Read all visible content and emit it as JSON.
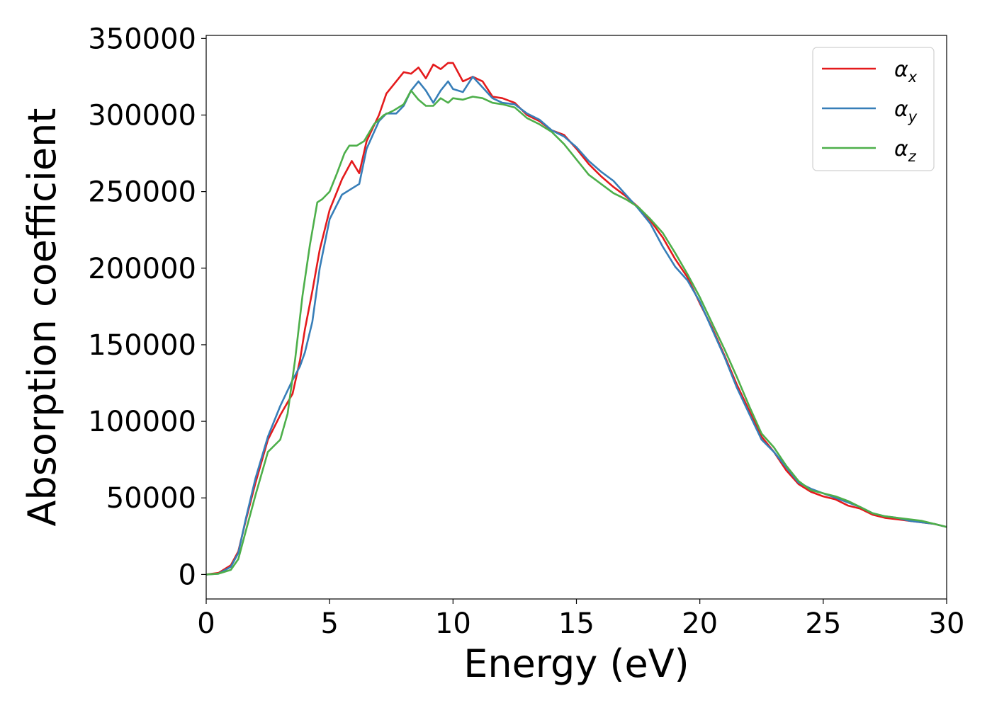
{
  "chart_data": {
    "type": "line",
    "title": "",
    "xlabel": "Energy (eV)",
    "ylabel": "Absorption coefficient",
    "xlim": [
      0,
      30
    ],
    "ylim": [
      -16000,
      352000
    ],
    "xticks": [
      0,
      5,
      10,
      15,
      20,
      25,
      30
    ],
    "yticks": [
      0,
      50000,
      100000,
      150000,
      200000,
      250000,
      300000,
      350000
    ],
    "grid": false,
    "legend_position": "top-right",
    "series": [
      {
        "name": "α",
        "subscript": "x",
        "color": "#e41a1c",
        "x": [
          0,
          0.5,
          1.0,
          1.3,
          1.6,
          2.0,
          2.5,
          3.0,
          3.5,
          3.8,
          4.0,
          4.3,
          4.6,
          5.0,
          5.5,
          5.9,
          6.2,
          6.5,
          7.0,
          7.3,
          7.7,
          8.0,
          8.3,
          8.6,
          8.9,
          9.2,
          9.5,
          9.8,
          10.0,
          10.4,
          10.8,
          11.2,
          11.6,
          12.0,
          12.5,
          13.0,
          13.5,
          14.0,
          14.5,
          15.0,
          15.5,
          16.0,
          16.5,
          17.0,
          17.5,
          18.0,
          18.5,
          19.0,
          19.5,
          20.0,
          20.5,
          21.0,
          21.5,
          22.0,
          22.5,
          23.0,
          23.5,
          24.0,
          24.5,
          25.0,
          25.5,
          26.0,
          26.5,
          27.0,
          27.5,
          28.0,
          28.5,
          29.0,
          29.5,
          30.0
        ],
        "y": [
          0,
          1000,
          6000,
          15000,
          35000,
          60000,
          88000,
          104000,
          118000,
          140000,
          160000,
          185000,
          212000,
          238000,
          258000,
          270000,
          262000,
          283000,
          300000,
          314000,
          322000,
          328000,
          327000,
          331000,
          324000,
          333000,
          330000,
          334000,
          334000,
          322000,
          325000,
          322000,
          312000,
          311000,
          308000,
          300000,
          296000,
          290000,
          287000,
          278000,
          268000,
          260000,
          253000,
          247000,
          240000,
          231000,
          220000,
          206000,
          194000,
          177000,
          161000,
          143000,
          124000,
          107000,
          90000,
          80000,
          68000,
          59000,
          54000,
          51000,
          49000,
          45000,
          43000,
          39000,
          37000,
          36000,
          35000,
          34000,
          33000,
          31000
        ]
      },
      {
        "name": "α",
        "subscript": "y",
        "color": "#377eb8",
        "x": [
          0,
          0.5,
          1.0,
          1.3,
          1.6,
          2.0,
          2.5,
          3.0,
          3.5,
          3.8,
          4.0,
          4.3,
          4.6,
          5.0,
          5.5,
          5.9,
          6.2,
          6.5,
          7.0,
          7.3,
          7.7,
          8.0,
          8.3,
          8.6,
          8.9,
          9.2,
          9.5,
          9.8,
          10.0,
          10.4,
          10.8,
          11.2,
          11.6,
          12.0,
          12.5,
          13.0,
          13.5,
          14.0,
          14.5,
          15.0,
          15.5,
          16.0,
          16.5,
          17.0,
          17.5,
          18.0,
          18.5,
          19.0,
          19.5,
          20.0,
          20.5,
          21.0,
          21.5,
          22.0,
          22.5,
          23.0,
          23.5,
          24.0,
          24.5,
          25.0,
          25.5,
          26.0,
          26.5,
          27.0,
          27.5,
          28.0,
          28.5,
          29.0,
          29.5,
          30.0
        ],
        "y": [
          0,
          500,
          5000,
          14000,
          36000,
          63000,
          90000,
          110000,
          127000,
          136000,
          145000,
          165000,
          200000,
          232000,
          248000,
          252000,
          255000,
          278000,
          296000,
          301000,
          301000,
          306000,
          316000,
          322000,
          316000,
          308000,
          316000,
          322000,
          317000,
          315000,
          325000,
          318000,
          311000,
          308000,
          307000,
          301000,
          297000,
          290000,
          286000,
          279000,
          270000,
          263000,
          257000,
          248000,
          239000,
          229000,
          214000,
          201000,
          192000,
          178000,
          160000,
          142000,
          122000,
          105000,
          88000,
          80000,
          70000,
          60000,
          56000,
          53000,
          50000,
          47000,
          44000,
          40000,
          38000,
          37000,
          35000,
          34000,
          33000,
          31000
        ]
      },
      {
        "name": "α",
        "subscript": "z",
        "color": "#4daf4a",
        "x": [
          0,
          0.5,
          1.0,
          1.3,
          1.6,
          2.0,
          2.5,
          3.0,
          3.3,
          3.6,
          3.9,
          4.2,
          4.5,
          4.7,
          5.0,
          5.3,
          5.6,
          5.8,
          6.1,
          6.4,
          6.8,
          7.2,
          7.6,
          8.0,
          8.3,
          8.6,
          8.9,
          9.2,
          9.5,
          9.8,
          10.0,
          10.4,
          10.8,
          11.2,
          11.6,
          12.0,
          12.5,
          13.0,
          13.5,
          14.0,
          14.5,
          15.0,
          15.5,
          16.0,
          16.5,
          17.0,
          17.5,
          18.0,
          18.5,
          19.0,
          19.5,
          20.0,
          20.5,
          21.0,
          21.5,
          22.0,
          22.5,
          23.0,
          23.5,
          24.0,
          24.5,
          25.0,
          25.5,
          26.0,
          26.5,
          27.0,
          27.5,
          28.0,
          28.5,
          29.0,
          29.5,
          30.0
        ],
        "y": [
          0,
          500,
          3000,
          10000,
          28000,
          52000,
          80000,
          88000,
          105000,
          140000,
          182000,
          215000,
          243000,
          245000,
          250000,
          262000,
          275000,
          280000,
          280000,
          283000,
          294000,
          300000,
          303000,
          307000,
          316000,
          310000,
          306000,
          306000,
          311000,
          308000,
          311000,
          310000,
          312000,
          311000,
          308000,
          307000,
          305000,
          298000,
          294000,
          289000,
          281000,
          271000,
          261000,
          255000,
          249000,
          245000,
          240000,
          232000,
          223000,
          210000,
          196000,
          181000,
          164000,
          147000,
          129000,
          110000,
          92000,
          83000,
          71000,
          61000,
          55000,
          53000,
          51000,
          48000,
          44000,
          40000,
          38000,
          37000,
          36000,
          35000,
          33000,
          31000
        ]
      }
    ]
  }
}
